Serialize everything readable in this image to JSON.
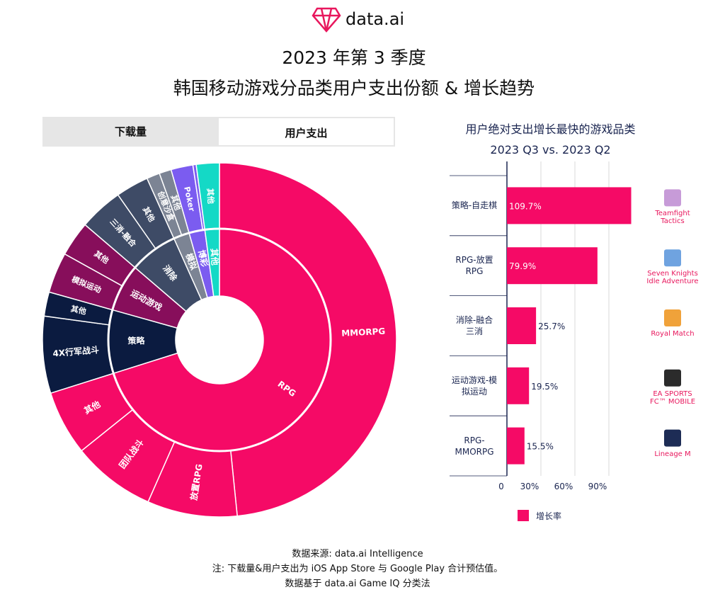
{
  "header": {
    "logo": "data.ai",
    "title": [
      "2023 年第 3 季度",
      "韩国移动游戏分品类用户支出份额 & 增长趋势"
    ]
  },
  "tabs": [
    "下载量",
    "用户支出"
  ],
  "chart_data": [
    {
      "type": "sunburst",
      "groups": [
        {
          "name": "RPG",
          "color": "#f50a66",
          "children": [
            {
              "name": "MMORPG",
              "value": 48.3
            },
            {
              "name": "放置RPG",
              "value": 8.2
            },
            {
              "name": "团队战斗",
              "value": 7.6
            },
            {
              "name": "其他",
              "value": 5.9
            }
          ]
        },
        {
          "name": "策略",
          "color": "#0b1b40",
          "children": [
            {
              "name": "4X行军战斗",
              "value": 7.0
            },
            {
              "name": "其他",
              "value": 2.2
            }
          ]
        },
        {
          "name": "运动游戏",
          "color": "#870e5b",
          "children": [
            {
              "name": "模拟运动",
              "value": 3.7
            },
            {
              "name": "其他",
              "value": 3.2
            }
          ]
        },
        {
          "name": "消除",
          "color": "#3e4b66",
          "children": [
            {
              "name": "三消-融合",
              "value": 4.0
            },
            {
              "name": "其他",
              "value": 3.0
            }
          ]
        },
        {
          "name": "模拟",
          "color": "#7c8494",
          "children": [
            {
              "name": "创意沙盒",
              "value": 1.2
            },
            {
              "name": "其他",
              "value": 1.1
            }
          ]
        },
        {
          "name": "博彩",
          "color": "#7b5cf0",
          "children": [
            {
              "name": "Poker",
              "value": 2.0
            },
            {
              "name": null,
              "value": 0.3
            }
          ]
        },
        {
          "name": "其他",
          "color": "#14d9c6",
          "children": [
            {
              "name": "其他",
              "value": 2.1
            }
          ]
        }
      ]
    },
    {
      "type": "bar",
      "orientation": "horizontal",
      "title": "用户绝对支出增长最快的游戏品类",
      "subtitle": "2023 Q3 vs. 2023 Q2",
      "categories": [
        "策略-自走棋",
        "RPG-放置\nRPG",
        "消除-融合\n三消",
        "运动游戏-模\n拟运动",
        "RPG-\nMMORPG"
      ],
      "series": [
        {
          "name": "增长率",
          "color": "#f50a66",
          "values": [
            109.7,
            79.9,
            25.7,
            19.5,
            15.5
          ],
          "value_labels": [
            "109.7%",
            "79.9%",
            "25.7%",
            "19.5%",
            "15.5%"
          ]
        }
      ],
      "xlim": [
        0,
        115
      ],
      "xticks": [
        0,
        {
          "value": 30,
          "label": "30%"
        },
        {
          "value": 60,
          "label": "60%"
        },
        {
          "value": 90,
          "label": "90%"
        }
      ],
      "grid": true,
      "apps": [
        "Teamfight\nTactics",
        "Seven Knights\nIdle Adventure",
        "Royal Match",
        "EA SPORTS\nFC™ MOBILE",
        "Lineage M"
      ]
    }
  ],
  "footer": [
    "数据来源: data.ai Intelligence",
    "注: 下载量&用户支出为 iOS App Store 与 Google Play 合计预估值。",
    "数据基于 data.ai Game IQ 分类法"
  ]
}
